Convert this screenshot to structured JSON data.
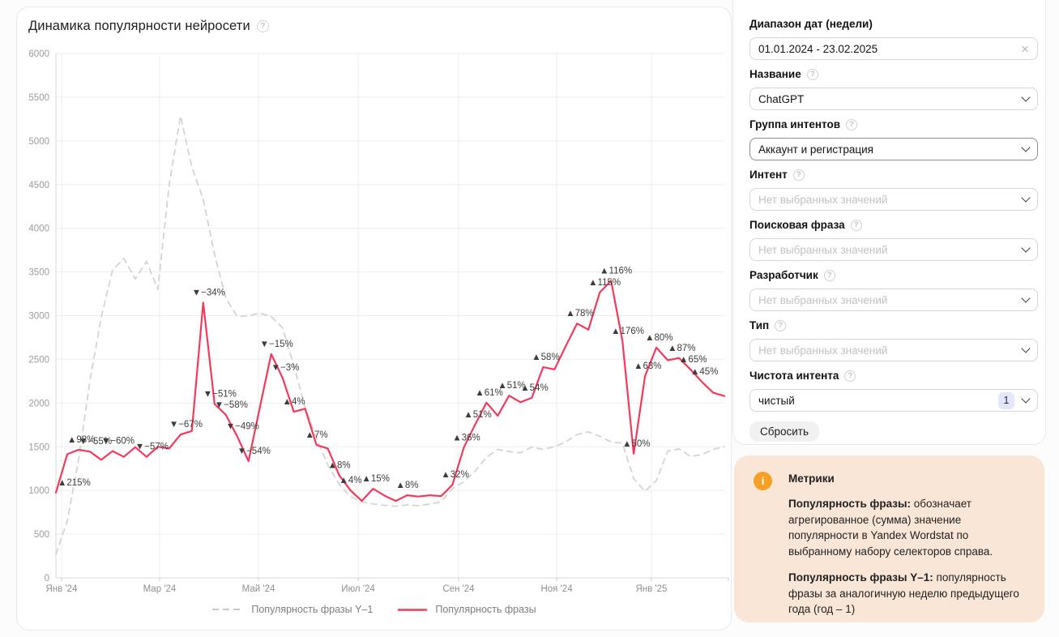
{
  "icons": {
    "help": "?",
    "close": "×",
    "info": "i"
  },
  "chart_card": {
    "title": "Динамика популярности нейросети"
  },
  "chart_data": {
    "type": "line",
    "title": "Динамика популярности нейросети",
    "x_unit": "weeks",
    "date_range": "01.01.2024 - 23.02.2025",
    "ylim": [
      0,
      6000
    ],
    "yticks": [
      0,
      500,
      1000,
      1500,
      2000,
      2500,
      3000,
      3500,
      4000,
      4500,
      5000,
      5500,
      6000
    ],
    "grid": true,
    "legend_position": "bottom",
    "xticks": [
      {
        "label": "Янв '24",
        "i": 0.5
      },
      {
        "label": "Мар '24",
        "i": 9.15
      },
      {
        "label": "Май '24",
        "i": 17.88
      },
      {
        "label": "Июл '24",
        "i": 26.68
      },
      {
        "label": "Сен '24",
        "i": 35.54
      },
      {
        "label": "Ноя '24",
        "i": 44.2
      },
      {
        "label": "Янв '25",
        "i": 52.56
      }
    ],
    "series": [
      {
        "name": "Популярность фразы Y–1",
        "style": "dashed",
        "color": "#d4d4d4",
        "values": [
          270,
          650,
          1350,
          2250,
          2980,
          3520,
          3655,
          3420,
          3620,
          3300,
          4500,
          5285,
          4700,
          4330,
          3700,
          3200,
          2990,
          3000,
          3030,
          2990,
          2860,
          2430,
          1950,
          1600,
          1290,
          1070,
          930,
          870,
          845,
          830,
          820,
          835,
          825,
          845,
          870,
          1020,
          1100,
          1220,
          1380,
          1470,
          1445,
          1430,
          1495,
          1470,
          1500,
          1555,
          1640,
          1670,
          1620,
          1555,
          1540,
          1135,
          990,
          1115,
          1450,
          1475,
          1390,
          1410,
          1470,
          1500
        ]
      },
      {
        "name": "Популярность фразы",
        "style": "solid",
        "color": "#f3395c",
        "values": [
          975,
          1415,
          1465,
          1445,
          1350,
          1450,
          1385,
          1495,
          1385,
          1500,
          1480,
          1640,
          1680,
          3150,
          1990,
          1865,
          1620,
          1335,
          1950,
          2560,
          2290,
          1900,
          1935,
          1520,
          1480,
          1175,
          1000,
          880,
          1020,
          940,
          880,
          945,
          930,
          945,
          935,
          1065,
          1490,
          1755,
          2005,
          1855,
          2085,
          2010,
          2060,
          2410,
          2385,
          2650,
          2910,
          2840,
          3265,
          3400,
          2710,
          1420,
          2310,
          2635,
          2490,
          2515,
          2385,
          2245,
          2120,
          2080
        ]
      }
    ],
    "annotations": [
      {
        "i": 0,
        "label": "215%",
        "dir": "up"
      },
      {
        "i": 2,
        "label": "98%",
        "dir": "up"
      },
      {
        "i": 3,
        "label": "−55%",
        "dir": "down"
      },
      {
        "i": 5,
        "label": "−60%",
        "dir": "down"
      },
      {
        "i": 8,
        "label": "−57%",
        "dir": "down"
      },
      {
        "i": 11,
        "label": "−67%",
        "dir": "down"
      },
      {
        "i": 13,
        "label": "−34%",
        "dir": "down"
      },
      {
        "i": 14,
        "label": "−51%",
        "dir": "down"
      },
      {
        "i": 15,
        "label": "−58%",
        "dir": "down"
      },
      {
        "i": 16,
        "label": "−49%",
        "dir": "down"
      },
      {
        "i": 17,
        "label": "−54%",
        "dir": "down"
      },
      {
        "i": 19,
        "label": "−15%",
        "dir": "down"
      },
      {
        "i": 20,
        "label": "−3%",
        "dir": "down"
      },
      {
        "i": 21,
        "label": "4%",
        "dir": "up"
      },
      {
        "i": 23,
        "label": "7%",
        "dir": "up"
      },
      {
        "i": 25,
        "label": "8%",
        "dir": "up"
      },
      {
        "i": 26,
        "label": "4%",
        "dir": "up"
      },
      {
        "i": 28,
        "label": "15%",
        "dir": "up"
      },
      {
        "i": 31,
        "label": "8%",
        "dir": "up"
      },
      {
        "i": 35,
        "label": "32%",
        "dir": "up"
      },
      {
        "i": 36,
        "label": "36%",
        "dir": "up"
      },
      {
        "i": 37,
        "label": "51%",
        "dir": "up"
      },
      {
        "i": 38,
        "label": "61%",
        "dir": "up"
      },
      {
        "i": 40,
        "label": "51%",
        "dir": "up"
      },
      {
        "i": 42,
        "label": "54%",
        "dir": "up"
      },
      {
        "i": 43,
        "label": "58%",
        "dir": "up"
      },
      {
        "i": 46,
        "label": "78%",
        "dir": "up"
      },
      {
        "i": 48,
        "label": "115%",
        "dir": "up"
      },
      {
        "i": 49,
        "label": "116%",
        "dir": "up"
      },
      {
        "i": 50,
        "label": "176%",
        "dir": "up"
      },
      {
        "i": 51,
        "label": "50%",
        "dir": "up"
      },
      {
        "i": 52,
        "label": "63%",
        "dir": "up"
      },
      {
        "i": 53,
        "label": "80%",
        "dir": "up"
      },
      {
        "i": 55,
        "label": "87%",
        "dir": "up"
      },
      {
        "i": 56,
        "label": "65%",
        "dir": "up"
      },
      {
        "i": 57,
        "label": "45%",
        "dir": "up"
      }
    ]
  },
  "sidebar": {
    "fields": [
      {
        "label": "Диапазон дат (недели)",
        "value": "01.01.2024 - 23.02.2025"
      },
      {
        "label": "Название",
        "value": "ChatGPT"
      },
      {
        "label": "Группа интентов",
        "value": "Аккаунт и регистрация"
      },
      {
        "label": "Интент",
        "value": "Нет выбранных значений"
      },
      {
        "label": "Поисковая фраза",
        "value": "Нет выбранных значений"
      },
      {
        "label": "Разработчик",
        "value": "Нет выбранных значений"
      },
      {
        "label": "Тип",
        "value": "Нет выбранных значений"
      },
      {
        "label": "Чистота интента",
        "value": "чистый",
        "badge": "1"
      }
    ],
    "reset_button": "Сбросить"
  },
  "metrics_info": {
    "title": "Метрики",
    "p1_bold": "Популярность фразы:",
    "p1_text": " обозначает агрегированное (сумма) значение популярности в Yandex Wordstat по выбранному набору селекторов справа.",
    "p2_bold": "Популярность фразы Y–1:",
    "p2_text": " популярность фразы за аналогичную неделю предыдущего года (год – 1)"
  }
}
